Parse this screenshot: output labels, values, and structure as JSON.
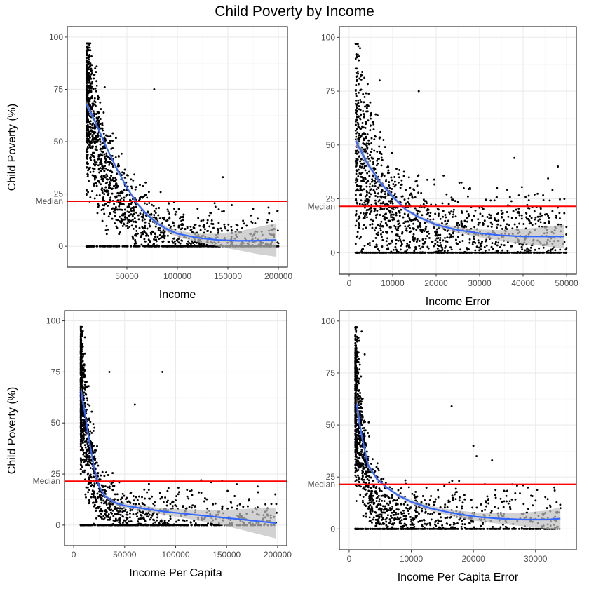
{
  "title": "Child Poverty by Income",
  "ylabel": "Child Poverty (%)",
  "median_label": "Median",
  "colors": {
    "points": "#000000",
    "smooth": "#3366ff",
    "ribbon": "#bfbfbf",
    "median_line": "#ff0000",
    "grid_major": "#ebebeb",
    "grid_minor": "#f5f5f5",
    "panel_border": "#333333"
  },
  "chart_data": [
    {
      "type": "scatter",
      "xlabel": "Income",
      "xlim": [
        0,
        200000
      ],
      "xticks": [
        50000,
        100000,
        150000,
        200000
      ],
      "xticklabels": [
        "50000",
        "100000",
        "150000",
        "200000"
      ],
      "ylim": [
        0,
        100
      ],
      "yticks": [
        0,
        25,
        50,
        75,
        100
      ],
      "yticklabels": [
        "0",
        "25",
        "50",
        "75",
        "100"
      ],
      "median": 21.5,
      "point_model": {
        "n": 1700,
        "x_min": 10000,
        "x_max": 200000,
        "x_skew": 2.6,
        "a": 70,
        "b": 3.6e-05,
        "c": 2.5,
        "noise": 12,
        "zero_fraction": 0.1
      },
      "outliers": [
        [
          12000,
          95
        ],
        [
          12500,
          91
        ],
        [
          15000,
          84
        ],
        [
          18000,
          82
        ],
        [
          28000,
          76
        ],
        [
          77000,
          75
        ],
        [
          18000,
          54
        ],
        [
          10000,
          0
        ],
        [
          145000,
          33
        ],
        [
          190000,
          3
        ]
      ],
      "smooth": {
        "x": [
          10000,
          20000,
          30000,
          40000,
          50000,
          60000,
          70000,
          80000,
          90000,
          100000,
          120000,
          140000,
          160000,
          180000,
          198000
        ],
        "y": [
          68,
          58,
          47,
          37,
          28,
          20.5,
          15,
          11,
          8,
          6,
          4,
          3,
          2.6,
          2.7,
          3
        ],
        "se": [
          1.5,
          1,
          0.8,
          0.8,
          0.8,
          0.8,
          0.8,
          1,
          1.2,
          1.5,
          2,
          3,
          4.5,
          6.5,
          8
        ]
      }
    },
    {
      "type": "scatter",
      "xlabel": "Income Error",
      "xlim": [
        0,
        50000
      ],
      "xticks": [
        0,
        10000,
        20000,
        30000,
        40000,
        50000
      ],
      "xticklabels": [
        "0",
        "10000",
        "20000",
        "30000",
        "40000",
        "50000"
      ],
      "ylim": [
        0,
        100
      ],
      "yticks": [
        0,
        25,
        50,
        75,
        100
      ],
      "yticklabels": [
        "0",
        "25",
        "50",
        "75",
        "100"
      ],
      "median": 21.5,
      "point_model": {
        "n": 1700,
        "x_min": 1500,
        "x_max": 50000,
        "x_skew": 1.8,
        "a": 47,
        "b": 0.00018,
        "c": 7,
        "noise": 16,
        "zero_fraction": 0.1
      },
      "outliers": [
        [
          2000,
          92
        ],
        [
          2500,
          95
        ],
        [
          3000,
          84
        ],
        [
          7000,
          80
        ],
        [
          16000,
          75
        ],
        [
          38000,
          44
        ],
        [
          48000,
          40
        ],
        [
          49500,
          25
        ],
        [
          49500,
          5
        ],
        [
          34000,
          30
        ]
      ],
      "smooth": {
        "x": [
          1500,
          4000,
          7000,
          10000,
          13000,
          16000,
          20000,
          25000,
          30000,
          35000,
          40000,
          45000,
          49500
        ],
        "y": [
          52,
          42,
          33,
          26,
          20,
          16.5,
          13,
          10.5,
          9,
          8,
          7.5,
          7.5,
          7.5
        ],
        "se": [
          2.5,
          1.5,
          1,
          0.8,
          0.8,
          0.8,
          1,
          1.3,
          1.8,
          2.5,
          3.5,
          4.5,
          5.5
        ]
      }
    },
    {
      "type": "scatter",
      "xlabel": "Income Per Capita",
      "xlim": [
        0,
        200000
      ],
      "xticks": [
        0,
        50000,
        100000,
        150000,
        200000
      ],
      "xticklabels": [
        "0",
        "50000",
        "100000",
        "150000",
        "200000"
      ],
      "ylim": [
        0,
        100
      ],
      "yticks": [
        0,
        25,
        50,
        75,
        100
      ],
      "yticklabels": [
        "0",
        "25",
        "50",
        "75",
        "100"
      ],
      "median": 21.5,
      "point_model": {
        "n": 1700,
        "x_min": 7000,
        "x_max": 200000,
        "x_skew": 4.5,
        "a": 70,
        "b": 9e-05,
        "c": 3,
        "noise": 12,
        "zero_fraction": 0.1
      },
      "outliers": [
        [
          9000,
          95
        ],
        [
          11000,
          92
        ],
        [
          11000,
          84
        ],
        [
          87000,
          75
        ],
        [
          60000,
          59
        ],
        [
          35000,
          75
        ],
        [
          125000,
          22
        ],
        [
          135000,
          21
        ],
        [
          160000,
          20
        ],
        [
          190000,
          2
        ]
      ],
      "smooth": {
        "x": [
          7000,
          10000,
          15000,
          20000,
          25000,
          30000,
          40000,
          50000,
          70000,
          90000,
          110000,
          130000,
          150000,
          170000,
          198000
        ],
        "y": [
          66,
          58,
          42,
          28,
          19,
          14.5,
          11,
          9.5,
          8,
          6.5,
          5.5,
          4.5,
          3.5,
          2.5,
          1
        ],
        "se": [
          3,
          2,
          1,
          0.8,
          0.8,
          0.8,
          0.8,
          1,
          1.3,
          1.6,
          2.2,
          3,
          4,
          5.5,
          7.5
        ]
      }
    },
    {
      "type": "scatter",
      "xlabel": "Income Per Capita Error",
      "xlim": [
        0,
        35000
      ],
      "xticks": [
        0,
        10000,
        20000,
        30000
      ],
      "xticklabels": [
        "0",
        "10000",
        "20000",
        "30000"
      ],
      "ylim": [
        0,
        100
      ],
      "yticks": [
        0,
        25,
        50,
        75,
        100
      ],
      "yticklabels": [
        "0",
        "25",
        "50",
        "75",
        "100"
      ],
      "median": 21.5,
      "point_model": {
        "n": 1700,
        "x_min": 1000,
        "x_max": 34000,
        "x_skew": 3.5,
        "a": 65,
        "b": 0.0006,
        "c": 4,
        "noise": 13,
        "zero_fraction": 0.1
      },
      "outliers": [
        [
          1500,
          92
        ],
        [
          2000,
          95
        ],
        [
          2500,
          84
        ],
        [
          16500,
          59
        ],
        [
          20000,
          40
        ],
        [
          20500,
          35
        ],
        [
          23000,
          33
        ],
        [
          28000,
          21
        ],
        [
          34000,
          10
        ],
        [
          33000,
          2
        ]
      ],
      "smooth": {
        "x": [
          1200,
          2000,
          3000,
          4500,
          6000,
          8000,
          10000,
          13000,
          16000,
          20000,
          24000,
          28000,
          32000,
          34000
        ],
        "y": [
          60,
          45,
          31,
          24,
          20,
          16,
          13,
          10,
          8,
          6,
          5,
          4.5,
          4.5,
          5
        ],
        "se": [
          4,
          2,
          1.2,
          0.8,
          0.8,
          0.8,
          1,
          1.2,
          1.5,
          2,
          2.5,
          3.2,
          4.5,
          5.5
        ]
      }
    }
  ]
}
